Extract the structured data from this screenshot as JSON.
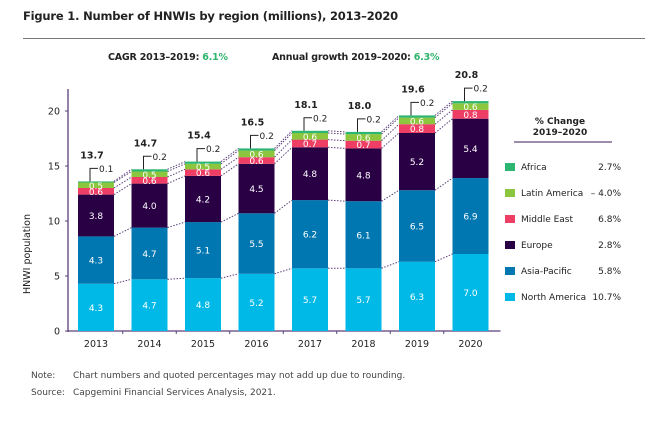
{
  "header": {
    "title": "Figure 1. Number of HNWIs by region (millions), 2013–2020",
    "cagr_label": "CAGR 2013–2019:",
    "cagr_value": "6.1%",
    "growth_label": "Annual growth 2019–2020:",
    "growth_value": "6.3%"
  },
  "legend": {
    "title_line1": "% Change",
    "title_line2": "2019–2020"
  },
  "footer": {
    "note_label": "Note:",
    "note_text": "Chart numbers and quoted percentages may not add up due to rounding.",
    "source_label": "Source:",
    "source_text": "Capgemini Financial Services Analysis, 2021."
  },
  "chart_data": {
    "type": "bar",
    "stacked": true,
    "title": "Number of HNWIs by region (millions), 2013–2020",
    "xlabel": "",
    "ylabel": "HNWI population",
    "ylim": [
      0,
      22
    ],
    "yticks": [
      0,
      5,
      10,
      15,
      20
    ],
    "categories": [
      "2013",
      "2014",
      "2015",
      "2016",
      "2017",
      "2018",
      "2019",
      "2020"
    ],
    "totals": [
      "13.7",
      "14.7",
      "15.4",
      "16.5",
      "18.1",
      "18.0",
      "19.6",
      "20.8"
    ],
    "series": [
      {
        "name": "North America",
        "color": "#00b9e6",
        "change": "10.7%",
        "values": [
          4.3,
          4.7,
          4.8,
          5.2,
          5.7,
          5.7,
          6.3,
          7.0
        ]
      },
      {
        "name": "Asia-Pacific",
        "color": "#0077b0",
        "change": "5.8%",
        "values": [
          4.3,
          4.7,
          5.1,
          5.5,
          6.2,
          6.1,
          6.5,
          6.9
        ]
      },
      {
        "name": "Europe",
        "color": "#2a0045",
        "change": "2.8%",
        "values": [
          3.8,
          4.0,
          4.2,
          4.5,
          4.8,
          4.8,
          5.2,
          5.4
        ]
      },
      {
        "name": "Middle East",
        "color": "#ef3e65",
        "change": "6.8%",
        "values": [
          0.6,
          0.6,
          0.6,
          0.6,
          0.7,
          0.7,
          0.8,
          0.8
        ]
      },
      {
        "name": "Latin America",
        "color": "#8cc63e",
        "change": "– 4.0%",
        "values": [
          0.5,
          0.5,
          0.5,
          0.6,
          0.6,
          0.6,
          0.6,
          0.6
        ]
      },
      {
        "name": "Africa",
        "color": "#2bb673",
        "change": "2.7%",
        "values": [
          0.1,
          0.2,
          0.2,
          0.2,
          0.2,
          0.2,
          0.2,
          0.2
        ]
      }
    ],
    "legend_position": "right",
    "grid": false
  }
}
